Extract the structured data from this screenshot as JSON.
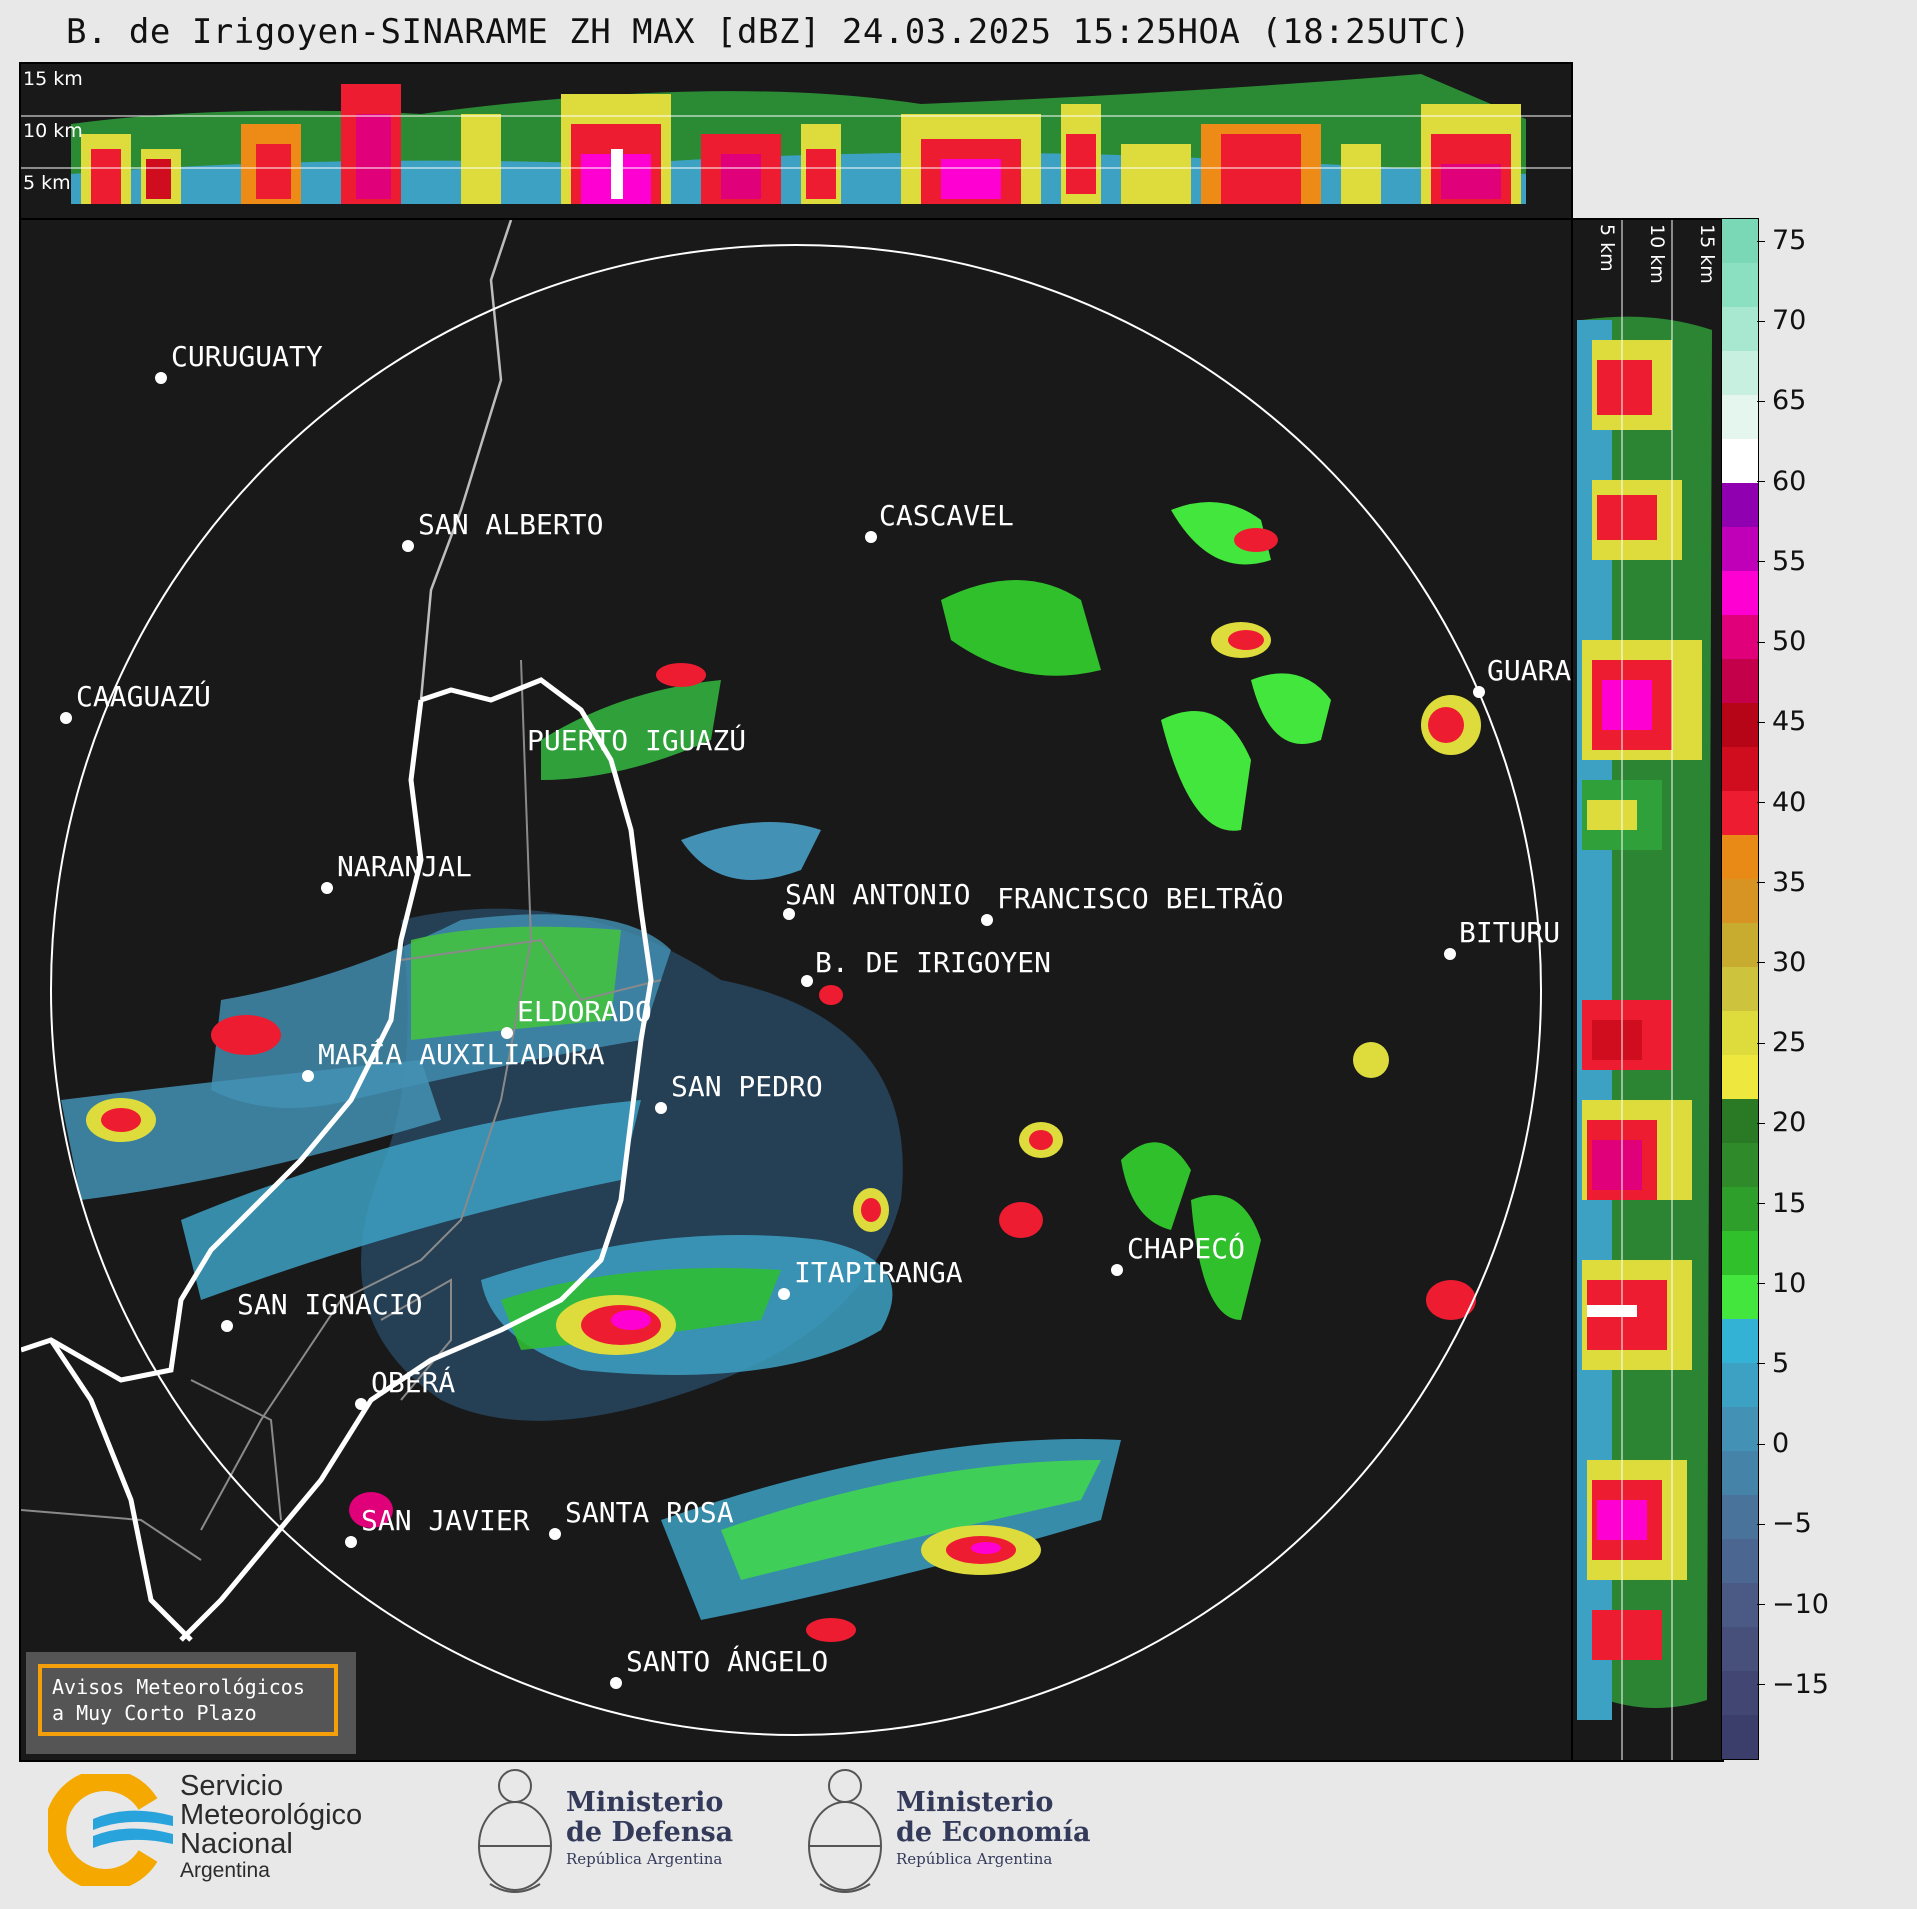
{
  "title": "B. de Irigoyen-SINARAME ZH MAX [dBZ] 24.03.2025 15:25HOA (18:25UTC)",
  "top_panel": {
    "height_labels": [
      "15 km",
      "10 km",
      "5 km"
    ]
  },
  "right_panel": {
    "height_labels": [
      "5 km",
      "10 km",
      "15 km"
    ]
  },
  "colorbar": {
    "ticks": [
      "75",
      "70",
      "65",
      "60",
      "55",
      "50",
      "45",
      "40",
      "35",
      "30",
      "25",
      "20",
      "15",
      "10",
      "5",
      "0",
      "−5",
      "−10",
      "−15"
    ],
    "min": -19.5,
    "max": 76.5,
    "colors": [
      "#3b3d6b",
      "#414673",
      "#47507b",
      "#4a5a85",
      "#4b6690",
      "#4a739c",
      "#4683a8",
      "#4392b5",
      "#3da1c4",
      "#33b2d6",
      "#43e63c",
      "#2fc02b",
      "#2e9f2b",
      "#2f8a2a",
      "#2a7a25",
      "#eee83e",
      "#dddc3c",
      "#cdc33c",
      "#c8ac30",
      "#d89422",
      "#ea8a16",
      "#ee1c30",
      "#cf0d1e",
      "#b50516",
      "#c4004b",
      "#e0007a",
      "#ff00d2",
      "#c000b8",
      "#9000b0",
      "#ffffff",
      "#e4f6ee",
      "#c8f0e0",
      "#a8e8d0",
      "#8ae0c0",
      "#7ad8b6"
    ]
  },
  "cities": [
    {
      "name": "CURUGUATY"
    },
    {
      "name": "SAN ALBERTO"
    },
    {
      "name": "CASCAVEL"
    },
    {
      "name": "CAAGUAZÚ"
    },
    {
      "name": "GUARA"
    },
    {
      "name": "PUERTO IGUAZÚ"
    },
    {
      "name": "NARANJAL"
    },
    {
      "name": "SAN ANTONIO"
    },
    {
      "name": "FRANCISCO BELTRÃO"
    },
    {
      "name": "BITURU"
    },
    {
      "name": "B. DE IRIGOYEN"
    },
    {
      "name": "ELDORADO"
    },
    {
      "name": "MARÍA AUXILIADORA"
    },
    {
      "name": "SAN PEDRO"
    },
    {
      "name": "CHAPECÓ"
    },
    {
      "name": "ITAPIRANGA"
    },
    {
      "name": "SAN IGNACIO"
    },
    {
      "name": "OBERÁ"
    },
    {
      "name": "SAN JAVIER"
    },
    {
      "name": "SANTA ROSA"
    },
    {
      "name": "SANTO ÁNGELO"
    }
  ],
  "warning": {
    "line1": "Avisos Meteorológicos",
    "line2": "a Muy Corto Plazo",
    "border_color": "#f5a00a"
  },
  "logos": {
    "smn": {
      "line1": "Servicio",
      "line2": "Meteorológico",
      "line3": "Nacional",
      "line4": "Argentina"
    },
    "defensa": {
      "line1": "Ministerio",
      "line2": "de Defensa",
      "line3": "República Argentina"
    },
    "economia": {
      "line1": "Ministerio",
      "line2": "de Economía",
      "line3": "República Argentina"
    }
  }
}
